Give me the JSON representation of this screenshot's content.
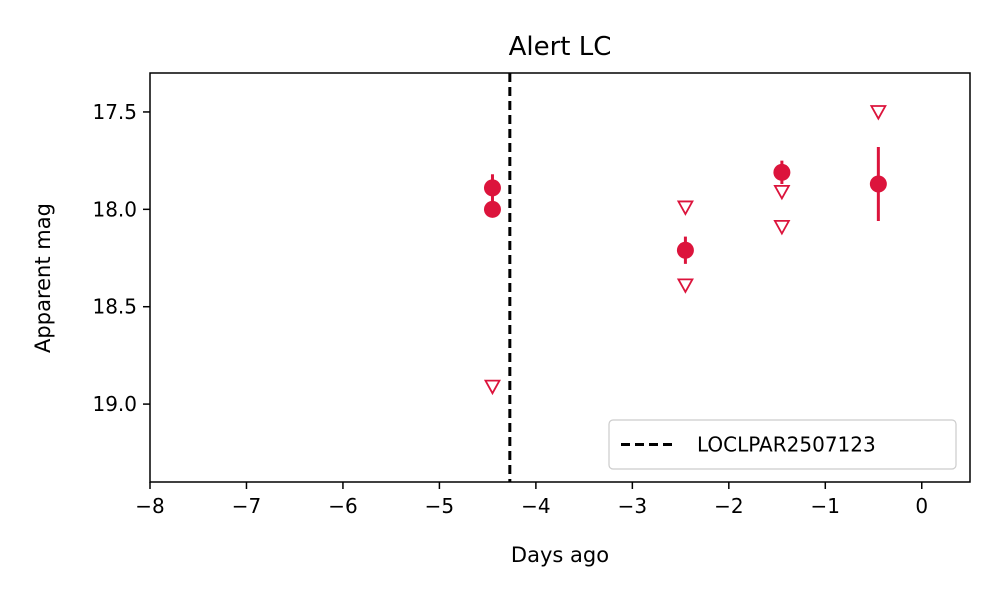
{
  "chart_data": {
    "type": "scatter",
    "title": "Alert LC",
    "xlabel": "Days ago",
    "ylabel": "Apparent mag",
    "xlim": [
      -8,
      0.5
    ],
    "ylim": [
      19.4,
      17.3
    ],
    "y_inverted": true,
    "x_ticks": [
      -8,
      -7,
      -6,
      -5,
      -4,
      -3,
      -2,
      -1,
      0
    ],
    "x_tick_labels": [
      "−8",
      "−7",
      "−6",
      "−5",
      "−4",
      "−3",
      "−2",
      "−1",
      "0"
    ],
    "y_ticks": [
      17.5,
      18.0,
      18.5,
      19.0
    ],
    "y_tick_labels": [
      "17.5",
      "18.0",
      "18.5",
      "19.0"
    ],
    "grid": false,
    "legend_position": "bottom-right",
    "color": "#dc143c",
    "detections": [
      {
        "x": -4.45,
        "y": 17.89,
        "yerr": 0.07
      },
      {
        "x": -4.45,
        "y": 18.0,
        "yerr": 0.0
      },
      {
        "x": -2.45,
        "y": 18.21,
        "yerr": 0.07
      },
      {
        "x": -1.45,
        "y": 17.81,
        "yerr": 0.06
      },
      {
        "x": -0.45,
        "y": 17.87,
        "yerr": 0.19
      }
    ],
    "upper_limits": [
      {
        "x": -4.45,
        "y": 18.91
      },
      {
        "x": -2.45,
        "y": 17.99
      },
      {
        "x": -2.45,
        "y": 18.39
      },
      {
        "x": -1.45,
        "y": 17.91
      },
      {
        "x": -1.45,
        "y": 18.09
      },
      {
        "x": -0.45,
        "y": 17.5
      }
    ],
    "reference_lines": [
      {
        "x": -4.27,
        "label": "LOCLPAR2507123",
        "style": "dashed",
        "color": "#000000"
      }
    ]
  }
}
